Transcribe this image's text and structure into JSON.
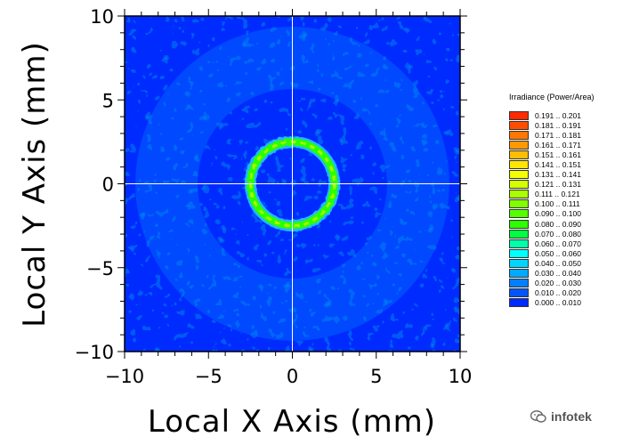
{
  "chart_data": {
    "type": "heatmap",
    "xlabel": "Local X Axis (mm)",
    "ylabel": "Local Y Axis (mm)",
    "xlim": [
      -10,
      10
    ],
    "ylim": [
      -10,
      10
    ],
    "x_ticks": [
      "−10",
      "−5",
      "0",
      "5",
      "10"
    ],
    "y_ticks": [
      "10",
      "5",
      "0",
      "−5",
      "−10"
    ],
    "x_tick_values": [
      -10,
      -5,
      0,
      5,
      10
    ],
    "y_tick_values": [
      10,
      5,
      0,
      -5,
      -10
    ],
    "crosshair": true,
    "background_level": 0.005,
    "features": [
      {
        "shape": "ring",
        "center": [
          0,
          0
        ],
        "radius_mm": 2.5,
        "peak_irradiance": 0.12
      },
      {
        "shape": "halo",
        "center": [
          0,
          0
        ],
        "radius_mm": 7.5,
        "peak_irradiance": 0.02
      }
    ],
    "legend": {
      "title": "Irradiance (Power/Area)",
      "placement": "right",
      "entries": [
        {
          "label": "0.191 .. 0.201",
          "color": "#ff2a00"
        },
        {
          "label": "0.181 .. 0.191",
          "color": "#ff4d00"
        },
        {
          "label": "0.171 .. 0.181",
          "color": "#ff7700"
        },
        {
          "label": "0.161 .. 0.171",
          "color": "#ff9900"
        },
        {
          "label": "0.151 .. 0.161",
          "color": "#ffbf00"
        },
        {
          "label": "0.141 .. 0.151",
          "color": "#ffe500"
        },
        {
          "label": "0.131 .. 0.141",
          "color": "#f5ff00"
        },
        {
          "label": "0.121 .. 0.131",
          "color": "#d4ff00"
        },
        {
          "label": "0.111 .. 0.121",
          "color": "#aaff00"
        },
        {
          "label": "0.100 .. 0.111",
          "color": "#80ff00"
        },
        {
          "label": "0.090 .. 0.100",
          "color": "#55ff00"
        },
        {
          "label": "0.080 .. 0.090",
          "color": "#2bff00"
        },
        {
          "label": "0.070 .. 0.080",
          "color": "#00ff40"
        },
        {
          "label": "0.060 .. 0.070",
          "color": "#00ffaa"
        },
        {
          "label": "0.050 .. 0.060",
          "color": "#00ffff"
        },
        {
          "label": "0.040 .. 0.050",
          "color": "#00d4ff"
        },
        {
          "label": "0.030 .. 0.040",
          "color": "#00aaff"
        },
        {
          "label": "0.020 .. 0.030",
          "color": "#0080ff"
        },
        {
          "label": "0.010 .. 0.020",
          "color": "#0055ff"
        },
        {
          "label": "0.000 .. 0.010",
          "color": "#002bff"
        }
      ]
    }
  },
  "watermark": {
    "text": "infotek",
    "icon": "wechat-icon"
  }
}
